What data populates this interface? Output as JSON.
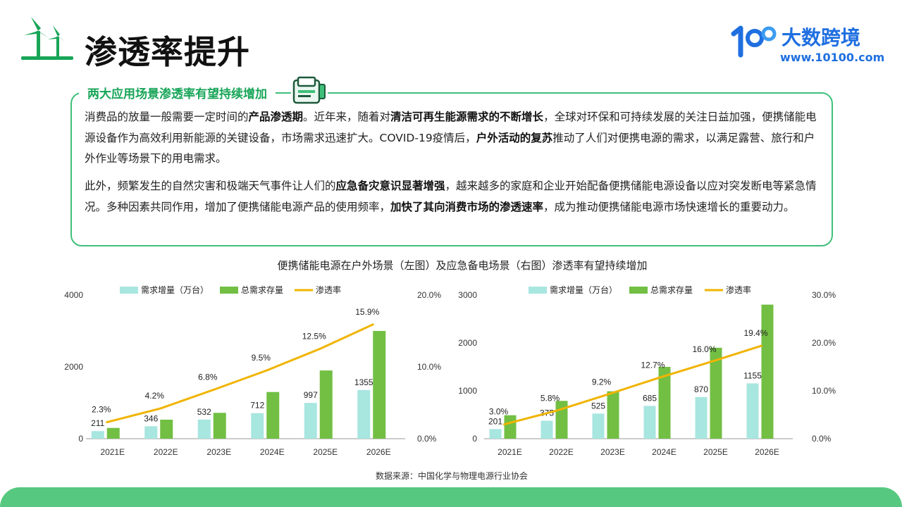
{
  "page_title": "渗透率提升",
  "brand": {
    "name": "大数跨境",
    "url": "www.10100.com"
  },
  "section_heading": "两大应用场景渗透率有望持续增加",
  "para1": {
    "t1": "消费品的放量一般需要一定时间的",
    "b1": "产品渗透期",
    "t2": "。近年来，随着对",
    "b2": "清洁可再生能源需求的不断增长",
    "t3": "，全球对环保和可持续发展的关注日益加强，便携储能电源设备作为高效利用新能源的关键设备，市场需求迅速扩大。COVID-19疫情后，",
    "b3": "户外活动的复苏",
    "t4": "推动了人们对便携电源的需求，以满足露营、旅行和户外作业等场景下的用电需求。"
  },
  "para2": {
    "t1": "此外，频繁发生的自然灾害和极端天气事件让人们的",
    "b1": "应急备灾意识显著增强",
    "t2": "，越来越多的家庭和企业开始配备便携储能电源设备以应对突发断电等紧急情况。多种因素共同作用，增加了便携储能电源产品的使用频率，",
    "b2": "加快了其向消费市场的渗透速率",
    "t3": "，成为推动便携储能电源市场快速增长的重要动力。"
  },
  "charts_title": "便携储能电源在户外场景（左图）及应急备电场景（右图）渗透率有望持续增加",
  "source": "数据来源：中国化学与物理电源行业协会",
  "colors": {
    "demand": "#a8e6e0",
    "stock": "#72bf44",
    "rate": "#f0b400",
    "accent": "#3fc07a",
    "brand": "#1f6fe0"
  },
  "chart_data": [
    {
      "type": "bar",
      "categories": [
        "2021E",
        "2022E",
        "2023E",
        "2024E",
        "2025E",
        "2026E"
      ],
      "series": [
        {
          "name": "需求增量（万台）",
          "type": "bar",
          "values": [
            211,
            346,
            532,
            712,
            997,
            1355
          ]
        },
        {
          "name": "总需求存量",
          "type": "bar",
          "values": [
            300,
            530,
            720,
            1300,
            1900,
            3000
          ]
        },
        {
          "name": "渗透率",
          "type": "line",
          "axis": "right",
          "values": [
            2.3,
            4.2,
            6.8,
            9.5,
            12.5,
            15.9
          ],
          "labels": [
            "2.3%",
            "4.2%",
            "6.8%",
            "9.5%",
            "12.5%",
            "15.9%"
          ]
        }
      ],
      "y_left": {
        "min": 0,
        "max": 4000,
        "ticks": [
          "0",
          "2000",
          "4000"
        ]
      },
      "y_right": {
        "min": 0,
        "max": 20,
        "ticks": [
          "0.0%",
          "10.0%",
          "20.0%"
        ]
      },
      "legend": "top"
    },
    {
      "type": "bar",
      "categories": [
        "2021E",
        "2022E",
        "2023E",
        "2024E",
        "2025E",
        "2026E"
      ],
      "series": [
        {
          "name": "需求增量（万台）",
          "type": "bar",
          "values": [
            201,
            375,
            525,
            685,
            870,
            1155
          ]
        },
        {
          "name": "总需求存量",
          "type": "bar",
          "values": [
            490,
            790,
            990,
            1500,
            1900,
            2800
          ]
        },
        {
          "name": "渗透率",
          "type": "line",
          "axis": "right",
          "values": [
            3.0,
            5.8,
            9.2,
            12.7,
            16.0,
            19.4
          ],
          "labels": [
            "3.0%",
            "5.8%",
            "9.2%",
            "12.7%",
            "16.0%",
            "19.4%"
          ]
        }
      ],
      "y_left": {
        "min": 0,
        "max": 3000,
        "ticks": [
          "0",
          "1000",
          "2000",
          "3000"
        ]
      },
      "y_right": {
        "min": 0,
        "max": 30,
        "ticks": [
          "0.0%",
          "10.0%",
          "20.0%",
          "30.0%"
        ]
      },
      "legend": "top"
    }
  ]
}
